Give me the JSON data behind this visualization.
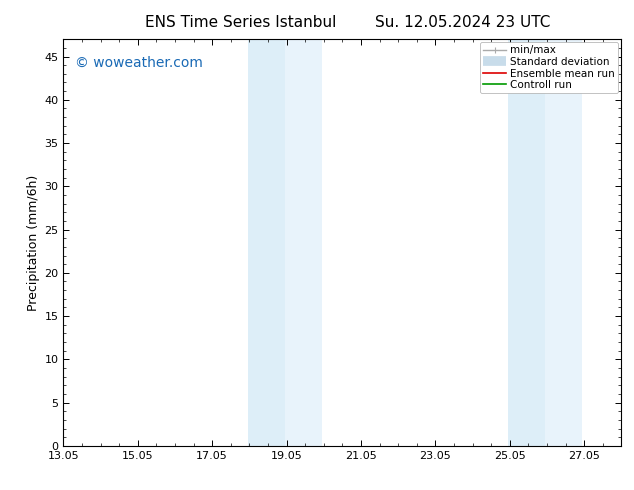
{
  "title": "ENS Time Series Istanbul",
  "title2": "Su. 12.05.2024 23 UTC",
  "ylabel": "Precipitation (mm/6h)",
  "xlim": [
    13.05,
    28.05
  ],
  "ylim": [
    0,
    47
  ],
  "yticks": [
    0,
    5,
    10,
    15,
    20,
    25,
    30,
    35,
    40,
    45
  ],
  "xticks": [
    13.05,
    15.05,
    17.05,
    19.05,
    21.05,
    23.05,
    25.05,
    27.05
  ],
  "xticklabels": [
    "13.05",
    "15.05",
    "17.05",
    "19.05",
    "21.05",
    "23.05",
    "25.05",
    "27.05"
  ],
  "shaded_regions": [
    {
      "xmin": 18.0,
      "xmax": 19.0,
      "color": "#ddeef8"
    },
    {
      "xmin": 19.0,
      "xmax": 20.0,
      "color": "#e8f3fb"
    },
    {
      "xmin": 25.0,
      "xmax": 26.0,
      "color": "#ddeef8"
    },
    {
      "xmin": 26.0,
      "xmax": 27.0,
      "color": "#e8f3fb"
    }
  ],
  "watermark_text": "© woweather.com",
  "watermark_color": "#1a6ab5",
  "watermark_fontsize": 10,
  "bg_color": "#ffffff",
  "legend_items": [
    {
      "label": "min/max",
      "color": "#aaaaaa",
      "linestyle": "-",
      "linewidth": 1.0,
      "type": "line_with_caps"
    },
    {
      "label": "Standard deviation",
      "color": "#c8dcea",
      "linestyle": "-",
      "linewidth": 7,
      "type": "band"
    },
    {
      "label": "Ensemble mean run",
      "color": "#dd0000",
      "linestyle": "-",
      "linewidth": 1.2,
      "type": "line"
    },
    {
      "label": "Controll run",
      "color": "#009900",
      "linestyle": "-",
      "linewidth": 1.2,
      "type": "line"
    }
  ],
  "title_fontsize": 11,
  "axis_fontsize": 9,
  "tick_fontsize": 8,
  "legend_fontsize": 7.5
}
